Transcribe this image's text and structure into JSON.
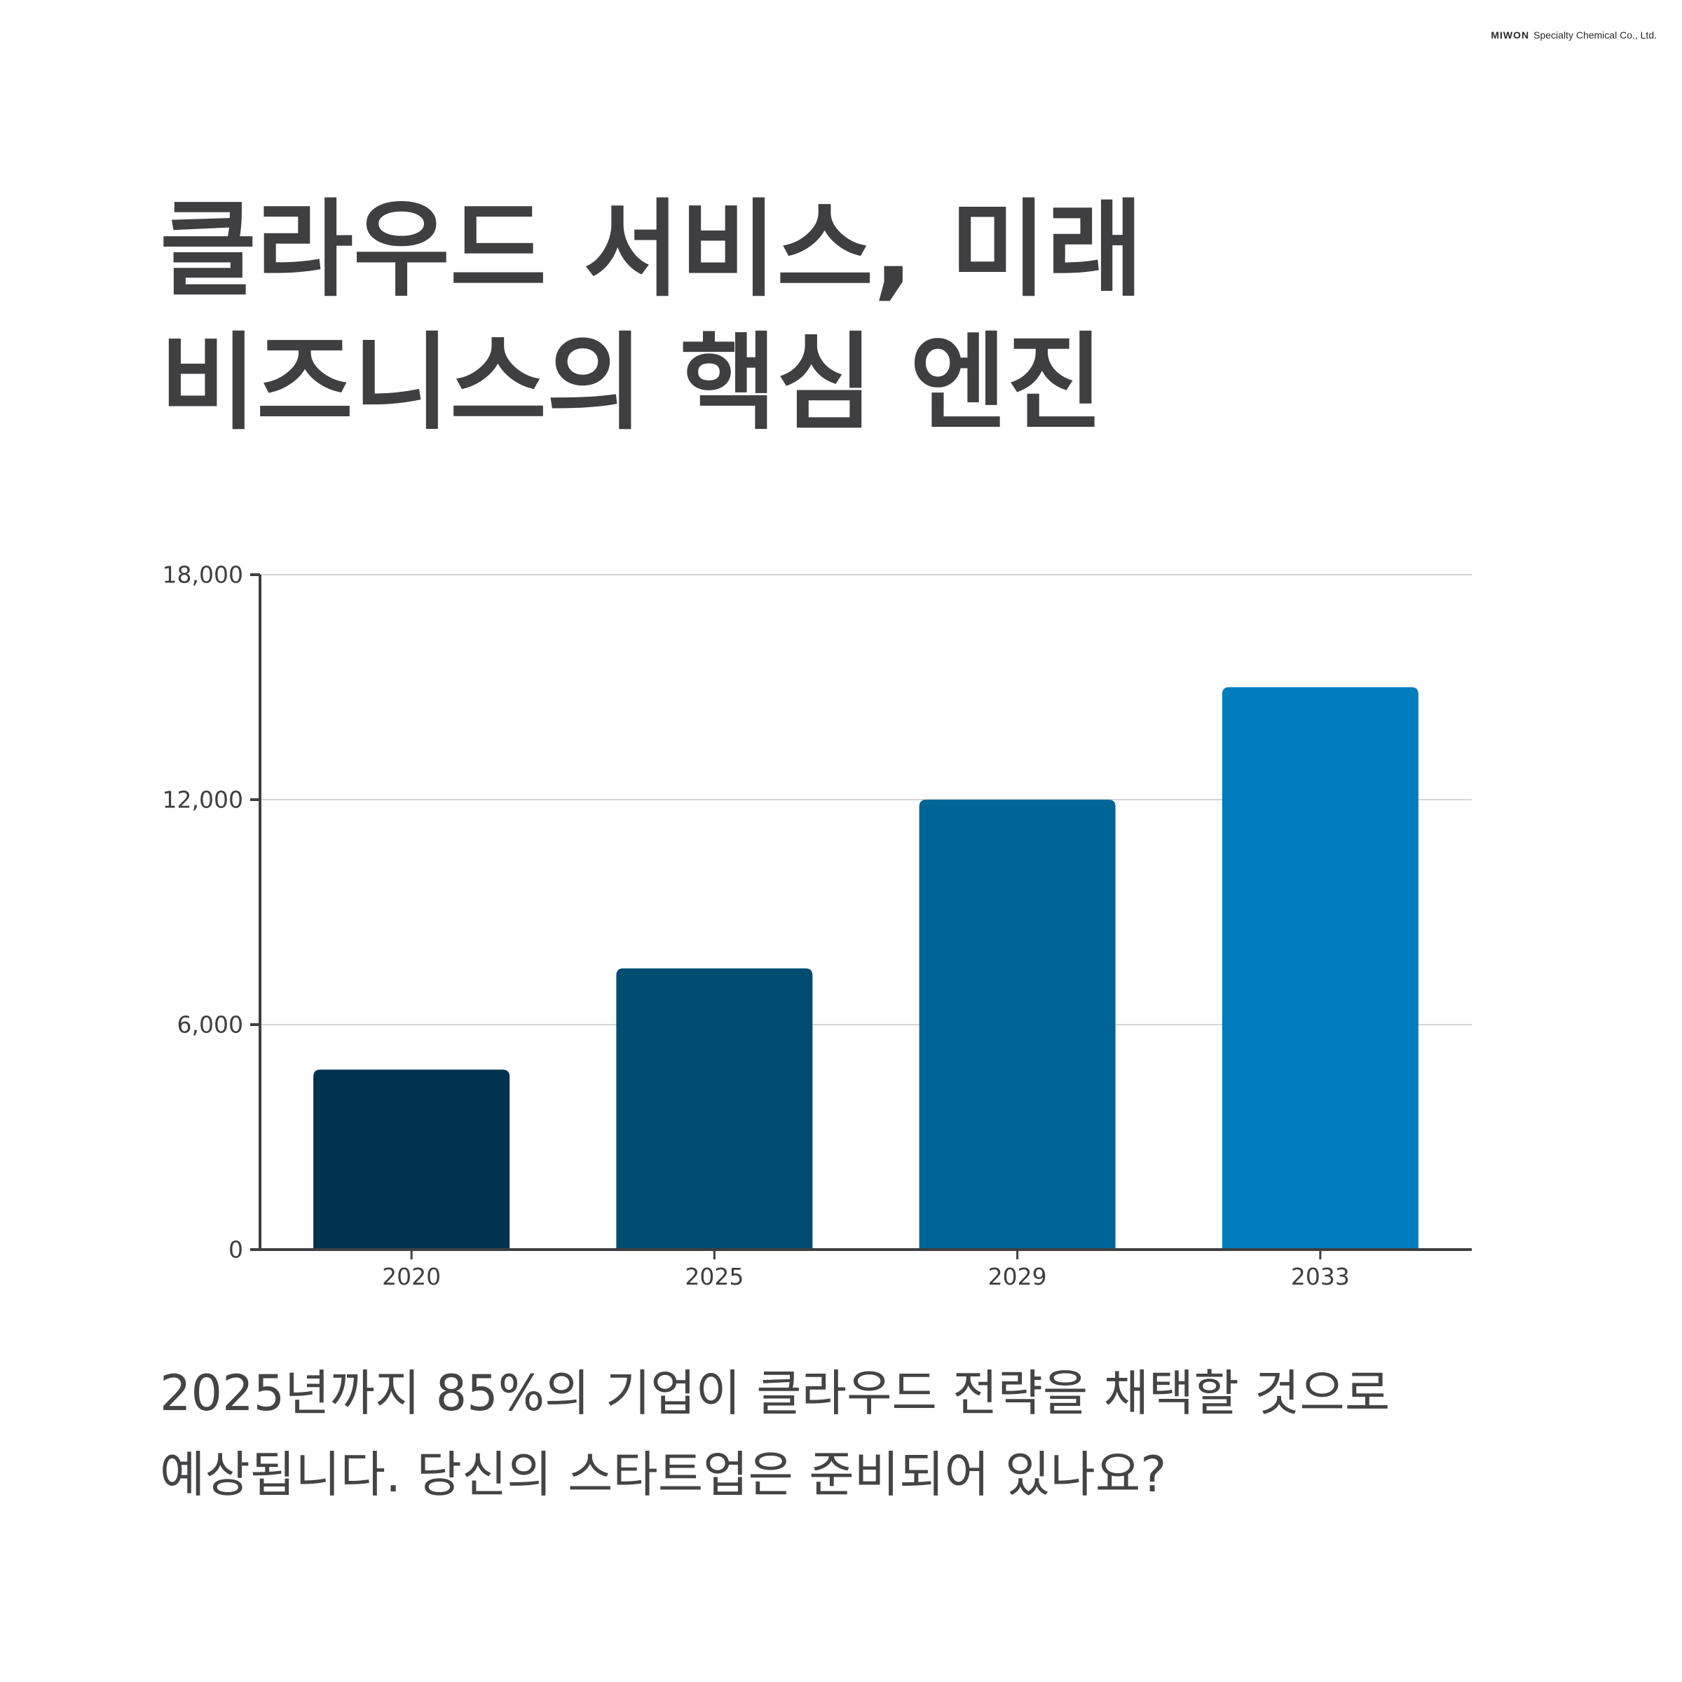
{
  "brand": {
    "name": "MIWON",
    "sub": "Specialty Chemical Co., Ltd."
  },
  "title": "클라우드 서비스, 미래 비즈니스의 핵심 엔진",
  "caption": "2025년까지 85%의 기업이 클라우드 전략을 채택할 것으로 예상됩니다. 당신의 스타트업은 준비되어 있나요?",
  "chart_data": {
    "type": "bar",
    "categories": [
      "2020",
      "2025",
      "2029",
      "2033"
    ],
    "values": [
      4800,
      7500,
      12000,
      15000
    ],
    "ylim": [
      0,
      18000
    ],
    "yticks": [
      0,
      6000,
      12000,
      18000
    ],
    "ytick_labels": [
      "0",
      "6,000",
      "12,000",
      "18,000"
    ],
    "colors": [
      "#00324e",
      "#004c71",
      "#006596",
      "#007dbd"
    ],
    "grid": true,
    "legend": "none"
  }
}
